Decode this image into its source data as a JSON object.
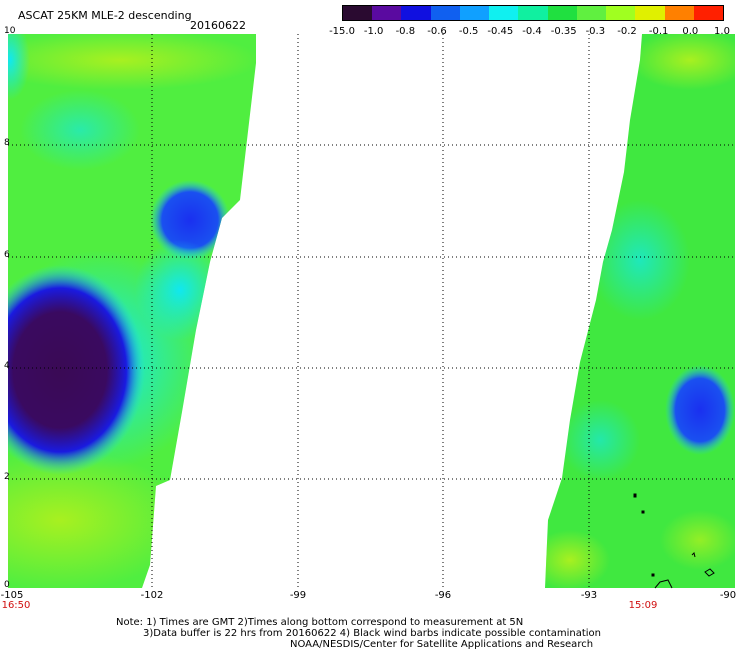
{
  "header": {
    "title": "ASCAT 25KM MLE-2 descending",
    "date": "20160622"
  },
  "legend": {
    "labels": [
      "-15.0",
      "-1.0",
      "-0.8",
      "-0.6",
      "-0.5",
      "-0.45",
      "-0.4",
      "-0.35",
      "-0.3",
      "-0.2",
      "-0.1",
      "0.0",
      "1.0"
    ],
    "colors": [
      "#2a0a30",
      "#5a0aa0",
      "#1010e0",
      "#1060f0",
      "#10a0ff",
      "#10f0f0",
      "#10f0a0",
      "#20e040",
      "#60f040",
      "#a0ff20",
      "#e0f000",
      "#ff8000",
      "#ff2000"
    ]
  },
  "axes": {
    "y_ticks": [
      "10",
      "8",
      "6",
      "4",
      "2",
      "0"
    ],
    "x_ticks": [
      "-105",
      "-102",
      "-99",
      "-96",
      "-93",
      "-90"
    ],
    "times": {
      "left": "16:50",
      "right": "15:09"
    }
  },
  "notes": {
    "line1": "Note: 1) Times are GMT 2)Times along bottom correspond to measurement at 5N",
    "line2": "3)Data buffer is 22 hrs from 20160622 4) Black wind barbs indicate possible contamination",
    "line3": "NOAA/NESDIS/Center for Satellite Applications and Research"
  }
}
